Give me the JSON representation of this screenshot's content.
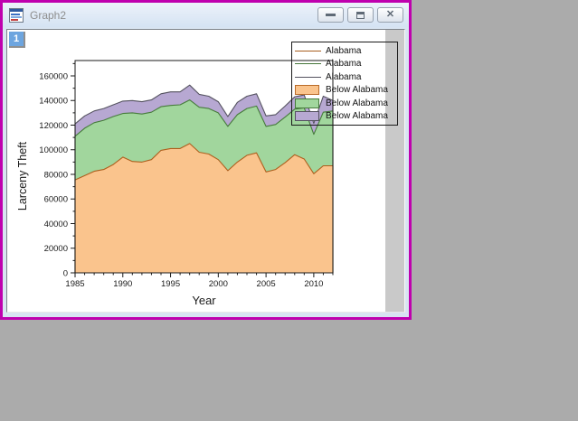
{
  "window": {
    "title": "Graph2",
    "controls": {
      "minimize": "minimize",
      "restore": "restore",
      "close": "close"
    },
    "border_color": "#BF00AE"
  },
  "page": {
    "layer_badge": "1"
  },
  "legend": {
    "position": "upper-right",
    "entries": [
      {
        "type": "line",
        "color": "#A85E1E",
        "label": "Alabama"
      },
      {
        "type": "line",
        "color": "#45763A",
        "label": "Alabama"
      },
      {
        "type": "line",
        "color": "#53525F",
        "label": "Alabama"
      },
      {
        "type": "box",
        "fill": "#FAC48D",
        "border": "#B96A28",
        "label": "Below Alabama"
      },
      {
        "type": "box",
        "fill": "#A1D69D",
        "border": "#467B3B",
        "label": "Below Alabama"
      },
      {
        "type": "box",
        "fill": "#B7A8D2",
        "border": "#54525F",
        "label": "Below Alabama"
      }
    ]
  },
  "chart_data": {
    "type": "area",
    "stacked": true,
    "title": "",
    "xlabel": "Year",
    "ylabel": "Larceny Theft",
    "xlim": [
      1985,
      2012
    ],
    "ylim": [
      0,
      160000
    ],
    "x_major_ticks": [
      1985,
      1990,
      1995,
      2000,
      2005,
      2010
    ],
    "y_major_ticks": [
      0,
      20000,
      40000,
      60000,
      80000,
      100000,
      120000,
      140000,
      160000
    ],
    "grid": false,
    "legend_position": "upper-right",
    "x": [
      1985,
      1986,
      1987,
      1988,
      1989,
      1990,
      1991,
      1992,
      1993,
      1994,
      1995,
      1996,
      1997,
      1998,
      1999,
      2000,
      2001,
      2002,
      2003,
      2004,
      2005,
      2006,
      2007,
      2008,
      2009,
      2010,
      2011,
      2012
    ],
    "series": [
      {
        "name": "Alabama",
        "fill_label": "Below Alabama",
        "fill": "#FAC48D",
        "line": "#AE5F1E",
        "values": [
          75500,
          79000,
          82500,
          84000,
          88000,
          94000,
          90500,
          90000,
          92000,
          99500,
          101000,
          101000,
          105000,
          98000,
          96500,
          92000,
          83000,
          90000,
          95500,
          97500,
          82000,
          84000,
          89500,
          96000,
          92500,
          80500,
          87000,
          87000
        ]
      },
      {
        "name": "Alabama",
        "fill_label": "Below Alabama",
        "fill": "#A1D69D",
        "line": "#467B3B",
        "values": [
          35500,
          38500,
          39500,
          40000,
          39000,
          35500,
          39500,
          39000,
          38500,
          35500,
          35000,
          35500,
          35500,
          36500,
          37000,
          38000,
          36000,
          38500,
          38000,
          38000,
          37000,
          36500,
          37000,
          37000,
          41500,
          32000,
          43500,
          44500
        ]
      },
      {
        "name": "Alabama",
        "fill_label": "Below Alabama",
        "fill": "#B7A8D2",
        "line": "#54525F",
        "values": [
          10000,
          10000,
          9500,
          9500,
          9500,
          10000,
          10000,
          10000,
          10000,
          10500,
          11000,
          10500,
          12000,
          10500,
          10000,
          9000,
          8000,
          10000,
          10000,
          10000,
          8500,
          8000,
          9000,
          10000,
          10500,
          9000,
          13000,
          8500
        ]
      }
    ]
  }
}
